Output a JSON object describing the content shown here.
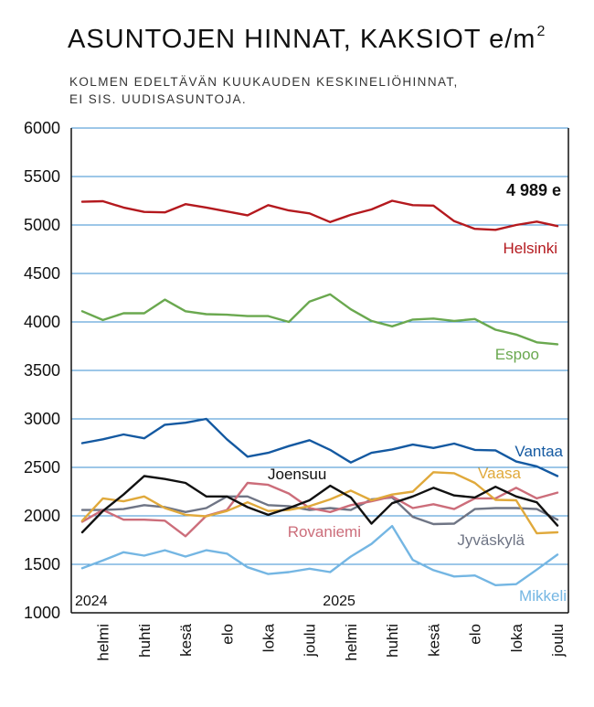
{
  "title": {
    "main": "ASUNTOJEN HINNAT, KAKSIOT e/m",
    "superscript": "2"
  },
  "subtitle": {
    "line1": "KOLMEN EDELTÄVÄN KUUKAUDEN KESKINELIÖHINNAT,",
    "line2": "EI SIS. UUDISASUNTOJA."
  },
  "chart_data": {
    "type": "line",
    "x": [
      "2024-01",
      "2024-02",
      "2024-03",
      "2024-04",
      "2024-05",
      "2024-06",
      "2024-07",
      "2024-08",
      "2024-09",
      "2024-10",
      "2024-11",
      "2024-12",
      "2025-01",
      "2025-02",
      "2025-03",
      "2025-04",
      "2025-05",
      "2025-06",
      "2025-07",
      "2025-08",
      "2025-09",
      "2025-10",
      "2025-11",
      "2025-12"
    ],
    "x_tick_labels": [
      "helmi",
      "huhti",
      "kesä",
      "elo",
      "loka",
      "joulu",
      "helmi",
      "huhti",
      "kesä",
      "elo",
      "loka",
      "joulu"
    ],
    "x_tick_months": [
      "2024-02",
      "2024-04",
      "2024-06",
      "2024-08",
      "2024-10",
      "2024-12",
      "2025-02",
      "2025-04",
      "2025-06",
      "2025-08",
      "2025-10",
      "2025-12"
    ],
    "year_labels": [
      {
        "label": "2024",
        "month": "2024-01"
      },
      {
        "label": "2025",
        "month": "2025-01"
      }
    ],
    "y_ticks": [
      "1000",
      "1500",
      "2000",
      "2500",
      "3000",
      "3500",
      "4000",
      "4500",
      "5000",
      "5500",
      "6000"
    ],
    "ylim": [
      1000,
      6000
    ],
    "grid": true,
    "value_annotation": "4 989 e",
    "series": [
      {
        "name": "Helsinki",
        "color": "#b4191e",
        "values": [
          5240,
          5245,
          5180,
          5135,
          5130,
          5215,
          5180,
          5140,
          5100,
          5205,
          5150,
          5120,
          5030,
          5105,
          5160,
          5250,
          5205,
          5200,
          5040,
          4960,
          4950,
          5000,
          5035,
          4989
        ]
      },
      {
        "name": "Espoo",
        "color": "#6aa84f",
        "values": [
          4110,
          4020,
          4090,
          4090,
          4230,
          4110,
          4080,
          4075,
          4060,
          4060,
          4000,
          4210,
          4285,
          4130,
          4010,
          3955,
          4025,
          4035,
          4010,
          4030,
          3920,
          3870,
          3790,
          3770
        ]
      },
      {
        "name": "Vantaa",
        "color": "#1459a1",
        "values": [
          2750,
          2790,
          2840,
          2800,
          2940,
          2960,
          3000,
          2790,
          2610,
          2650,
          2720,
          2780,
          2680,
          2550,
          2650,
          2685,
          2735,
          2700,
          2745,
          2680,
          2675,
          2560,
          2510,
          2410
        ]
      },
      {
        "name": "Joensuu",
        "color": "#111111",
        "values": [
          1830,
          2050,
          2220,
          2410,
          2380,
          2340,
          2200,
          2200,
          2090,
          2010,
          2080,
          2160,
          2310,
          2190,
          1920,
          2130,
          2200,
          2290,
          2210,
          2190,
          2300,
          2200,
          2140,
          1900
        ]
      },
      {
        "name": "Vaasa",
        "color": "#e0a93b",
        "values": [
          1950,
          2180,
          2150,
          2200,
          2080,
          2010,
          1995,
          2050,
          2140,
          2050,
          2060,
          2100,
          2170,
          2260,
          2160,
          2220,
          2250,
          2450,
          2440,
          2340,
          2165,
          2160,
          1820,
          1830
        ]
      },
      {
        "name": "Rovaniemi",
        "color": "#cc6d7a",
        "values": [
          1940,
          2060,
          1960,
          1960,
          1950,
          1790,
          2000,
          2060,
          2340,
          2320,
          2230,
          2080,
          2040,
          2110,
          2150,
          2200,
          2080,
          2120,
          2070,
          2180,
          2180,
          2290,
          2180,
          2240
        ]
      },
      {
        "name": "Jyväskylä",
        "color": "#6f7585",
        "values": [
          2060,
          2060,
          2070,
          2110,
          2090,
          2040,
          2080,
          2200,
          2200,
          2110,
          2100,
          2060,
          2080,
          2060,
          2170,
          2190,
          1990,
          1915,
          1920,
          2070,
          2080,
          2080,
          2070,
          1960
        ]
      },
      {
        "name": "Mikkeli",
        "color": "#74b6e3",
        "values": [
          1460,
          1540,
          1625,
          1590,
          1645,
          1580,
          1645,
          1610,
          1470,
          1400,
          1420,
          1455,
          1420,
          1580,
          1710,
          1895,
          1545,
          1440,
          1375,
          1385,
          1285,
          1295,
          1445,
          1600
        ]
      }
    ]
  }
}
